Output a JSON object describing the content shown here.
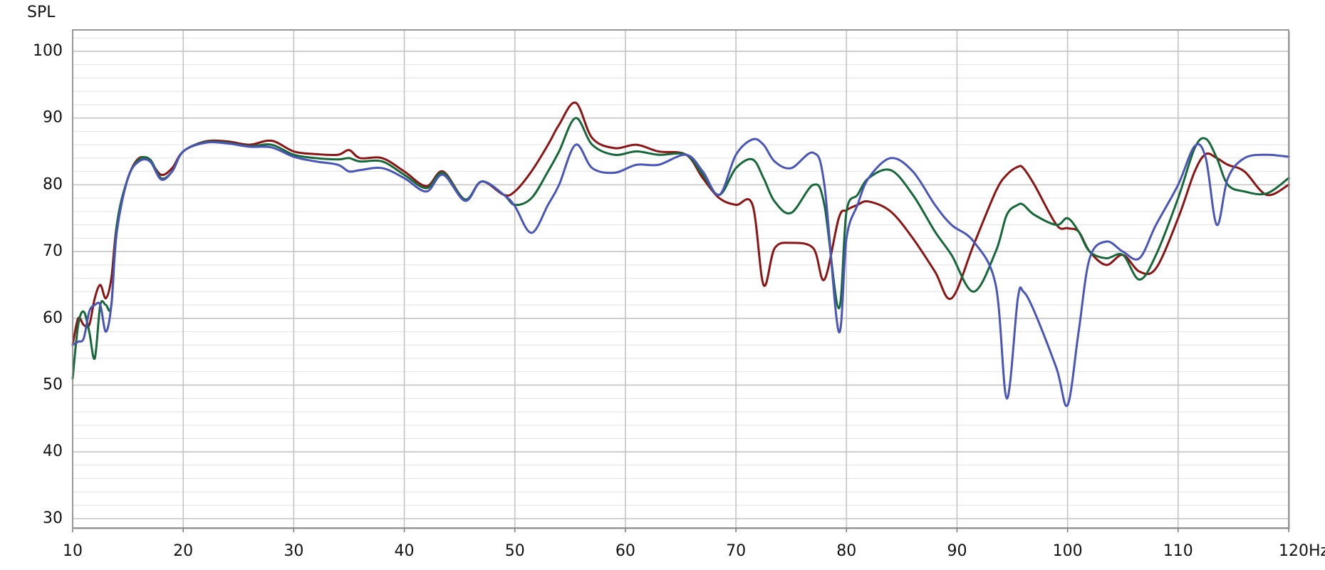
{
  "chart_data": {
    "type": "line",
    "ylabel": "SPL",
    "x": [
      10,
      10.5,
      11,
      11.5,
      12,
      12.5,
      13,
      13.5,
      14,
      15,
      16,
      17,
      18,
      19,
      20,
      22,
      24,
      26,
      28,
      30,
      32,
      34,
      35,
      36,
      38,
      40,
      42,
      43.5,
      45.5,
      47,
      49,
      50,
      51.5,
      53,
      54,
      55.5,
      57,
      59,
      61,
      63,
      65.5,
      67,
      68.5,
      70,
      71.5,
      72.5,
      73.5,
      75,
      77,
      78,
      79.3,
      80,
      81,
      82,
      84,
      86,
      88,
      89.5,
      91.5,
      93.5,
      94.5,
      95.5,
      96,
      97,
      99,
      100,
      101,
      102,
      103.5,
      105,
      106.5,
      108,
      110,
      111.5,
      112.5,
      113.5,
      114.5,
      116,
      118,
      120
    ],
    "series": [
      {
        "color": "#8b1414",
        "values": [
          56,
          60,
          59,
          59,
          63,
          65,
          63,
          66,
          74,
          81,
          84,
          83.5,
          81.5,
          82.5,
          85,
          86.5,
          86.5,
          86,
          86.6,
          85,
          84.6,
          84.5,
          85.2,
          84,
          84,
          82,
          79.8,
          82,
          77.8,
          80.5,
          78.5,
          79,
          82,
          86,
          89,
          92.3,
          87,
          85.5,
          86,
          85,
          84.5,
          81,
          78,
          77,
          77,
          65,
          70.5,
          71.3,
          70.5,
          65.8,
          75,
          76.2,
          77,
          77.5,
          76,
          72,
          67,
          63,
          71,
          79,
          81.5,
          82.7,
          82.5,
          80,
          74,
          73.5,
          73,
          70,
          68,
          69.5,
          67,
          67.5,
          75,
          82,
          84.6,
          84,
          83,
          82,
          78.5,
          80
        ]
      },
      {
        "color": "#16683a",
        "values": [
          51,
          59,
          61,
          58,
          54,
          62,
          62,
          62,
          74,
          81,
          83.8,
          83.8,
          81,
          82,
          85,
          86.4,
          86.3,
          85.8,
          86,
          84.5,
          84,
          83.8,
          84,
          83.5,
          83.5,
          81.5,
          79.5,
          81.8,
          77.8,
          80.5,
          78.5,
          77,
          78,
          82,
          85,
          90,
          86,
          84.5,
          85,
          84.5,
          84.5,
          81.5,
          78.5,
          82.5,
          83.8,
          81,
          77.5,
          75.8,
          80,
          77,
          61.5,
          76,
          78.5,
          81,
          82.2,
          78.5,
          73,
          69.5,
          64,
          70,
          75.5,
          77,
          77,
          75.5,
          74,
          75,
          73,
          70,
          69,
          69.5,
          65.8,
          69.5,
          78,
          85.5,
          86.9,
          84,
          80,
          79,
          78.7,
          81
        ]
      },
      {
        "color": "#4a55b8",
        "values": [
          56,
          56.5,
          57,
          61,
          62,
          62,
          58,
          62,
          73,
          81,
          83.5,
          83.5,
          80.8,
          82,
          85,
          86.3,
          86.2,
          85.7,
          85.6,
          84.2,
          83.5,
          83,
          82,
          82.2,
          82.5,
          81,
          79,
          81.5,
          77.6,
          80.5,
          78.5,
          76.8,
          72.8,
          77,
          80,
          86,
          82.5,
          81.8,
          83,
          83,
          84.5,
          82,
          78.5,
          84.5,
          86.8,
          86,
          83.5,
          82.5,
          84.8,
          80,
          58,
          72,
          77,
          81,
          84,
          82,
          77,
          74,
          71.5,
          65,
          48,
          63,
          64,
          61,
          52.5,
          47,
          58,
          69,
          71.5,
          70,
          69,
          74,
          80,
          85.8,
          84,
          74,
          81,
          84,
          84.5,
          84.2
        ]
      }
    ],
    "xlim": [
      10,
      120
    ],
    "ylim": [
      28.6,
      103.2
    ],
    "xticks": [
      10,
      20,
      30,
      40,
      50,
      60,
      70,
      80,
      90,
      100,
      110,
      {
        "value": 120,
        "label": "120Hz"
      }
    ],
    "yticks": [
      30,
      40,
      50,
      60,
      70,
      80,
      90,
      100
    ],
    "yminorticks": [
      32,
      34,
      36,
      38,
      42,
      44,
      46,
      48,
      52,
      54,
      56,
      58,
      62,
      64,
      66,
      68,
      72,
      74,
      76,
      78,
      82,
      84,
      86,
      88,
      92,
      94,
      96,
      98,
      102
    ],
    "grid": true
  }
}
